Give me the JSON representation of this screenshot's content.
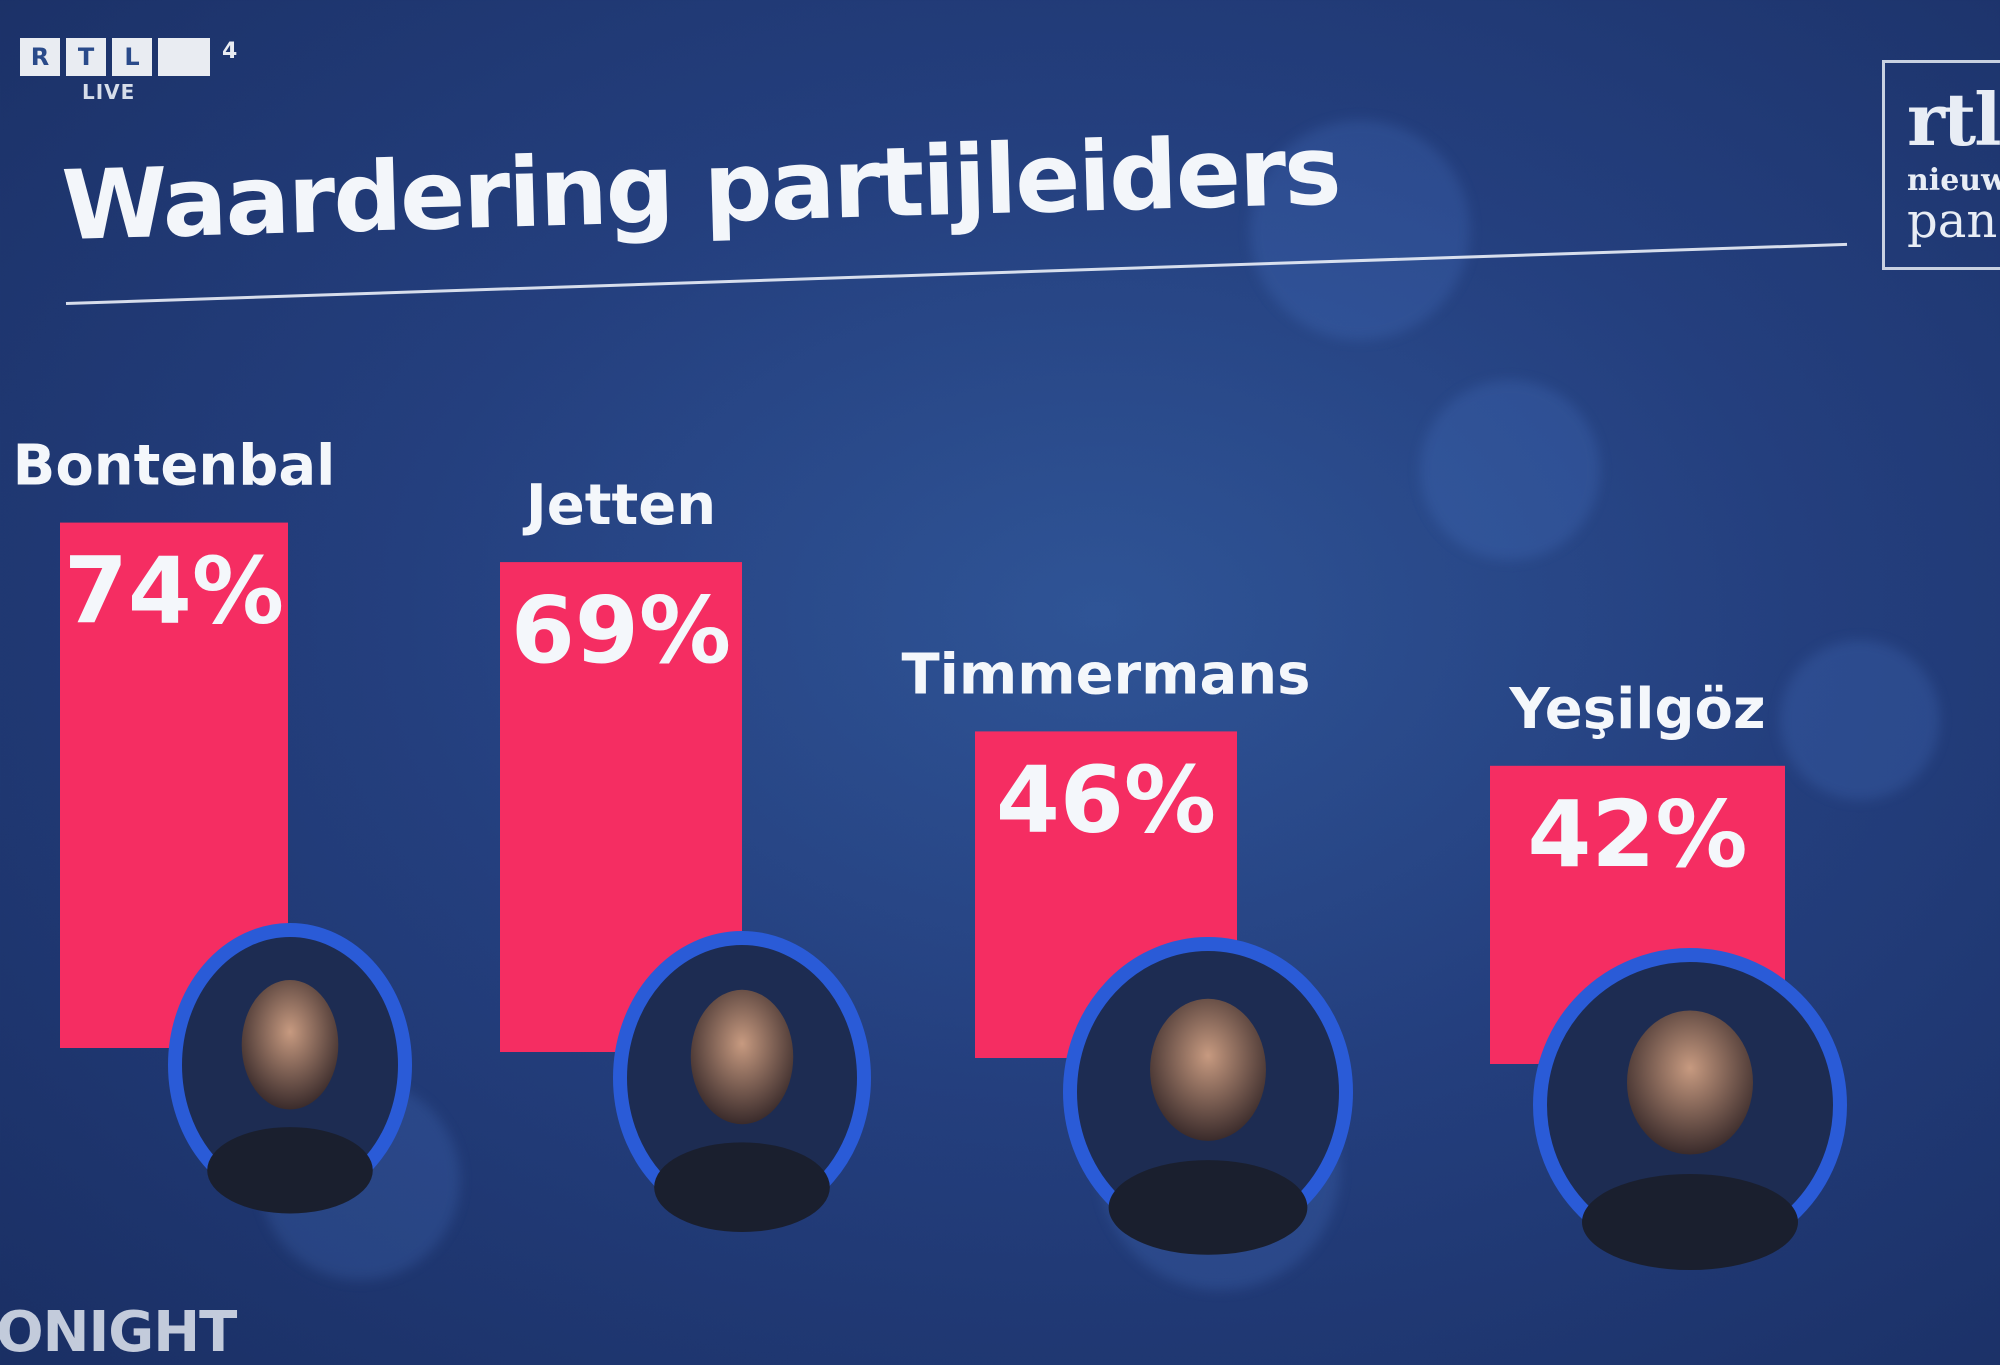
{
  "broadcaster": {
    "letters": [
      "R",
      "T",
      "L"
    ],
    "channel": "4",
    "live": "LIVE"
  },
  "panel_logo": {
    "line1": "rtl",
    "line2": "nieuw",
    "line3": "pan"
  },
  "footer": {
    "text": "ONIGHT"
  },
  "colors": {
    "bar": "#f52d62",
    "background": "#243f7e",
    "text": "#f4f7fb",
    "avatar_ring": "#2a5bd7"
  },
  "chart_data": {
    "type": "bar",
    "title": "Waardering partijleiders",
    "categories": [
      "Bontenbal",
      "Jetten",
      "Timmermans",
      "Yeşilgöz"
    ],
    "values": [
      74,
      69,
      46,
      42
    ],
    "value_labels": [
      "74%",
      "69%",
      "46%",
      "42%"
    ],
    "unit": "%",
    "grid": false,
    "legend": "none"
  }
}
